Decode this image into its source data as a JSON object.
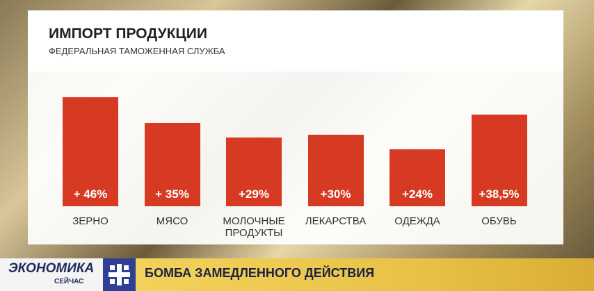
{
  "chart_data": {
    "type": "bar",
    "title": "ИМПОРТ ПРОДУКЦИИ",
    "subtitle": "ФЕДЕРАЛЬНАЯ ТАМОЖЕННАЯ СЛУЖБА",
    "categories": [
      "ЗЕРНО",
      "МЯСО",
      "МОЛОЧНЫЕ ПРОДУКТЫ",
      "ЛЕКАРСТВА",
      "ОДЕЖДА",
      "ОБУВЬ"
    ],
    "values": [
      46,
      35,
      29,
      30,
      24,
      38.5
    ],
    "value_labels": [
      "+ 46%",
      "+ 35%",
      "+29%",
      "+30%",
      "+24%",
      "+38,5%"
    ],
    "color": "#d63a22"
  },
  "banner": {
    "channel": "ЭКОНОМИКА",
    "channel_sub": "СЕЙЧАС",
    "headline": "БОМБА ЗАМЕДЛЕННОГО ДЕЙСТВИЯ"
  }
}
